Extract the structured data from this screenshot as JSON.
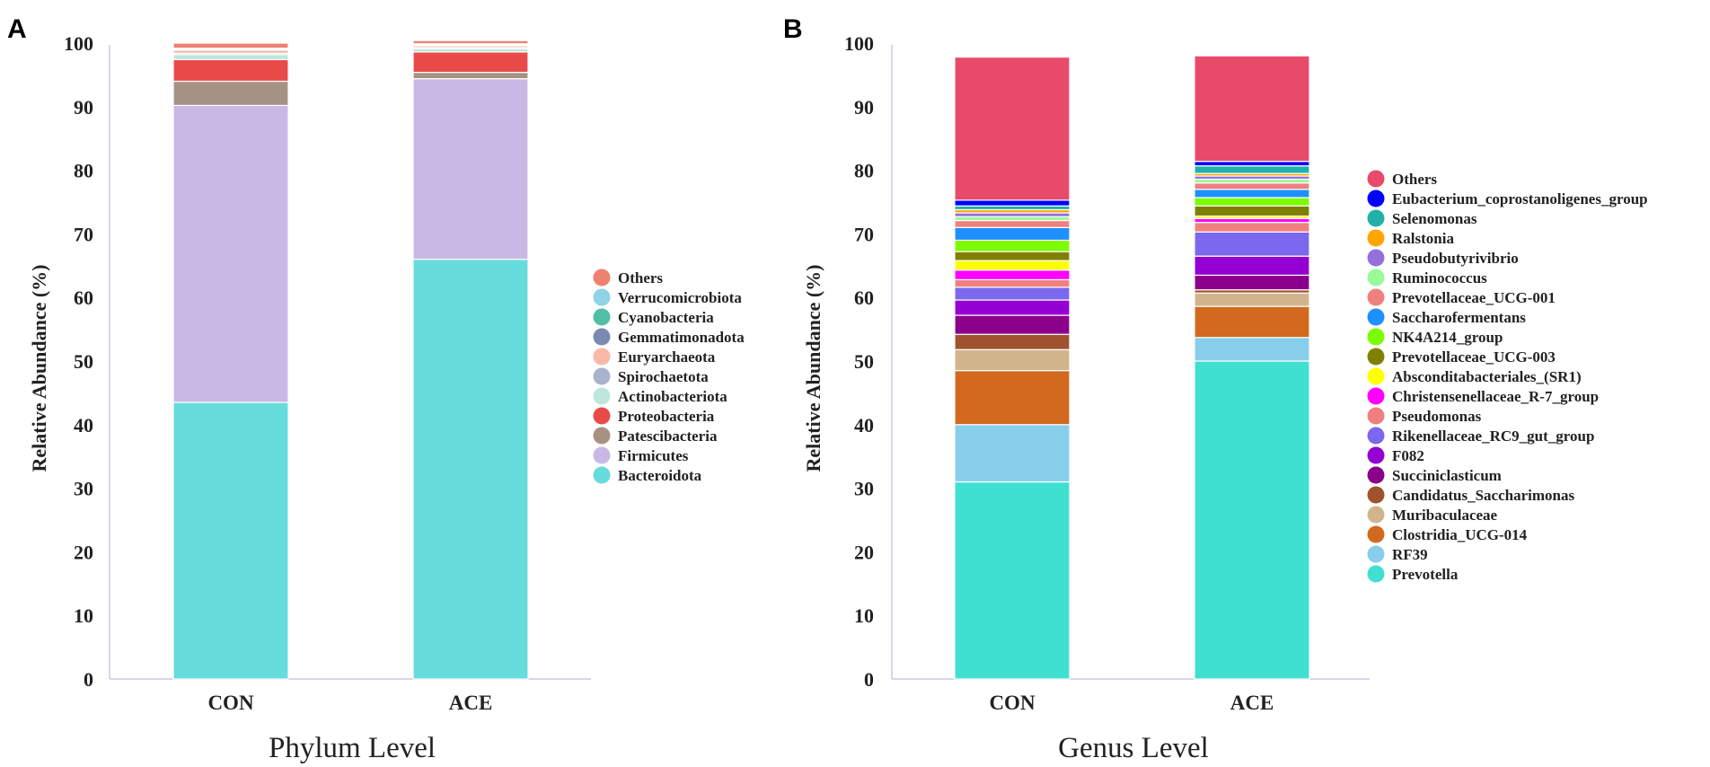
{
  "chart_data": [
    {
      "type": "bar",
      "stacked": true,
      "panel_label": "A",
      "title": "",
      "xtitle": "Phylum Level",
      "ylabel": "Relative Abundance (%)",
      "ylim": [
        0,
        100
      ],
      "yticks": [
        0,
        10,
        20,
        30,
        40,
        50,
        60,
        70,
        80,
        90,
        100
      ],
      "categories": [
        "CON",
        "ACE"
      ],
      "legend": [
        "Others",
        "Verrucomicrobiota",
        "Cyanobacteria",
        "Gemmatimonadota",
        "Euryarchaeota",
        "Spirochaetota",
        "Actinobacteriota",
        "Proteobacteria",
        "Patescibacteria",
        "Firmicutes",
        "Bacteroidota"
      ],
      "series": [
        {
          "name": "Bacteroidota",
          "color": "#66DCDC",
          "values": [
            43.5,
            66.0
          ]
        },
        {
          "name": "Firmicutes",
          "color": "#C9B8E6",
          "values": [
            46.7,
            28.4
          ]
        },
        {
          "name": "Patescibacteria",
          "color": "#A69282",
          "values": [
            3.8,
            1.0
          ]
        },
        {
          "name": "Proteobacteria",
          "color": "#E84A4A",
          "values": [
            3.4,
            3.2
          ]
        },
        {
          "name": "Actinobacteriota",
          "color": "#BDE6DC",
          "values": [
            0.8,
            0.5
          ]
        },
        {
          "name": "Spirochaetota",
          "color": "#A9B3CE",
          "values": [
            0.2,
            0.2
          ]
        },
        {
          "name": "Euryarchaeota",
          "color": "#F8B9A6",
          "values": [
            0.5,
            0.3
          ]
        },
        {
          "name": "Gemmatimonadota",
          "color": "#7B8AB3",
          "values": [
            0.1,
            0.1
          ]
        },
        {
          "name": "Cyanobacteria",
          "color": "#4FBFA6",
          "values": [
            0.1,
            0.1
          ]
        },
        {
          "name": "Verrucomicrobiota",
          "color": "#8FD3E6",
          "values": [
            0.1,
            0.1
          ]
        },
        {
          "name": "Others",
          "color": "#EE8170",
          "values": [
            0.8,
            0.5
          ]
        }
      ]
    },
    {
      "type": "bar",
      "stacked": true,
      "panel_label": "B",
      "title": "",
      "xtitle": "Genus Level",
      "ylabel": "Relative Abundance (%)",
      "ylim": [
        0,
        100
      ],
      "yticks": [
        0,
        10,
        20,
        30,
        40,
        50,
        60,
        70,
        80,
        90,
        100
      ],
      "categories": [
        "CON",
        "ACE"
      ],
      "legend": [
        "Others",
        "Eubacterium_coprostanoligenes_group",
        "Selenomonas",
        "Ralstonia",
        "Pseudobutyrivibrio",
        "Ruminococcus",
        "Prevotellaceae_UCG-001",
        "Saccharofermentans",
        "NK4A214_group",
        "Prevotellaceae_UCG-003",
        "Absconditabacteriales_(SR1)",
        "Christensenellaceae_R-7_group",
        "Pseudomonas",
        "Rikenellaceae_RC9_gut_group",
        "F082",
        "Succiniclasticum",
        "Candidatus_Saccharimonas",
        "Muribaculaceae",
        "Clostridia_UCG-014",
        "RF39",
        "Prevotella"
      ],
      "series": [
        {
          "name": "Prevotella",
          "color": "#40E0D0",
          "values": [
            31.0,
            50.0
          ]
        },
        {
          "name": "RF39",
          "color": "#87CEEB",
          "values": [
            9.0,
            3.7
          ]
        },
        {
          "name": "Clostridia_UCG-014",
          "color": "#D2691E",
          "values": [
            8.5,
            4.9
          ]
        },
        {
          "name": "Muribaculaceae",
          "color": "#D2B48C",
          "values": [
            3.3,
            2.1
          ]
        },
        {
          "name": "Candidatus_Saccharimonas",
          "color": "#A0522D",
          "values": [
            2.4,
            0.5
          ]
        },
        {
          "name": "Succiniclasticum",
          "color": "#8B008B",
          "values": [
            3.0,
            2.3
          ]
        },
        {
          "name": "F082",
          "color": "#9400D3",
          "values": [
            2.4,
            3.0
          ]
        },
        {
          "name": "Rikenellaceae_RC9_gut_group",
          "color": "#7B68EE",
          "values": [
            2.0,
            3.8
          ]
        },
        {
          "name": "Pseudomonas",
          "color": "#F08080",
          "values": [
            1.2,
            1.5
          ]
        },
        {
          "name": "Christensenellaceae_R-7_group",
          "color": "#FF00FF",
          "values": [
            1.5,
            0.6
          ]
        },
        {
          "name": "Absconditabacteriales_(SR1)",
          "color": "#FFFF00",
          "values": [
            1.5,
            0.4
          ]
        },
        {
          "name": "Prevotellaceae_UCG-003",
          "color": "#808000",
          "values": [
            1.4,
            1.6
          ]
        },
        {
          "name": "NK4A214_group",
          "color": "#7CFC00",
          "values": [
            1.8,
            1.3
          ]
        },
        {
          "name": "Saccharofermentans",
          "color": "#1E90FF",
          "values": [
            2.0,
            1.3
          ]
        },
        {
          "name": "Prevotellaceae_UCG-001",
          "color": "#F08080",
          "values": [
            1.1,
            1.0
          ]
        },
        {
          "name": "Ruminococcus",
          "color": "#98FB98",
          "values": [
            0.6,
            0.6
          ]
        },
        {
          "name": "Pseudobutyrivibrio",
          "color": "#9370DB",
          "values": [
            0.6,
            0.5
          ]
        },
        {
          "name": "Ralstonia",
          "color": "#FFA500",
          "values": [
            0.5,
            0.4
          ]
        },
        {
          "name": "Selenomonas",
          "color": "#20B2AA",
          "values": [
            0.6,
            1.2
          ]
        },
        {
          "name": "Eubacterium_coprostanoligenes_group",
          "color": "#0000FF",
          "values": [
            0.9,
            0.7
          ]
        },
        {
          "name": "Others",
          "color": "#E84A6A",
          "values": [
            22.5,
            16.6
          ]
        }
      ]
    }
  ]
}
